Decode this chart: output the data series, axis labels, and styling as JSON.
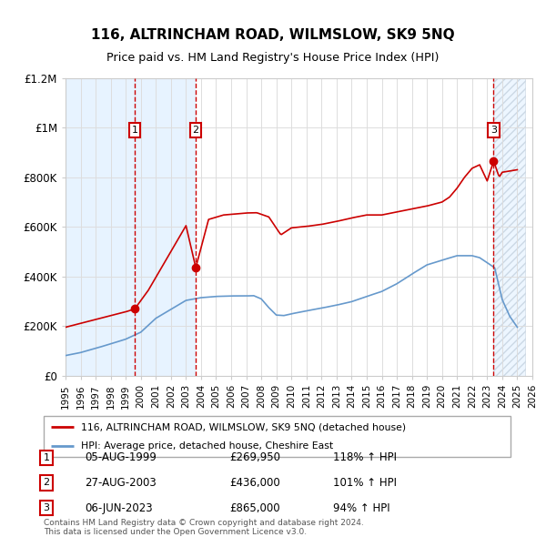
{
  "title": "116, ALTRINCHAM ROAD, WILMSLOW, SK9 5NQ",
  "subtitle": "Price paid vs. HM Land Registry's House Price Index (HPI)",
  "legend_line1": "116, ALTRINCHAM ROAD, WILMSLOW, SK9 5NQ (detached house)",
  "legend_line2": "HPI: Average price, detached house, Cheshire East",
  "footer1": "Contains HM Land Registry data © Crown copyright and database right 2024.",
  "footer2": "This data is licensed under the Open Government Licence v3.0.",
  "sales": [
    {
      "num": 1,
      "date": "05-AUG-1999",
      "price": "£269,950",
      "hpi": "118% ↑ HPI"
    },
    {
      "num": 2,
      "date": "27-AUG-2003",
      "price": "£436,000",
      "hpi": "101% ↑ HPI"
    },
    {
      "num": 3,
      "date": "06-JUN-2023",
      "price": "£865,000",
      "hpi": "94% ↑ HPI"
    }
  ],
  "sale_years": [
    1999.6,
    2003.65,
    2023.43
  ],
  "sale_prices": [
    269950,
    436000,
    865000
  ],
  "ylim": [
    0,
    1200000
  ],
  "yticks": [
    0,
    200000,
    400000,
    600000,
    800000,
    1000000,
    1200000
  ],
  "ytick_labels": [
    "£0",
    "£200K",
    "£400K",
    "£600K",
    "£800K",
    "£1M",
    "£1.2M"
  ],
  "red_line_color": "#cc0000",
  "blue_line_color": "#6699cc",
  "shade_color": "#ddeeff",
  "grid_color": "#dddddd",
  "background_color": "#ffffff",
  "xlim_min": 1995.0,
  "xlim_max": 2025.5
}
